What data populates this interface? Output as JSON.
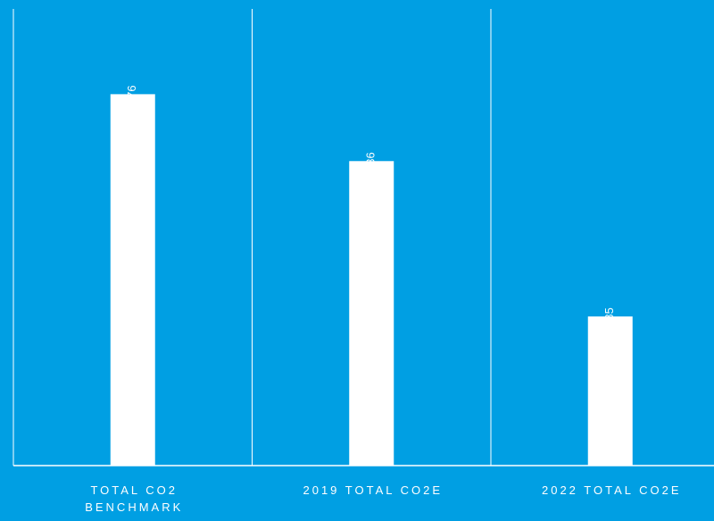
{
  "chart_data": {
    "type": "bar",
    "categories": [
      "TOTAL CO2 BENCHMARK",
      "2019 TOTAL CO2E",
      "2022 TOTAL CO2E"
    ],
    "values": [
      1176,
      1000.136,
      591.85
    ],
    "color": "#ffffff",
    "background": "#009fe3",
    "ylim": [
      200,
      1400
    ]
  }
}
